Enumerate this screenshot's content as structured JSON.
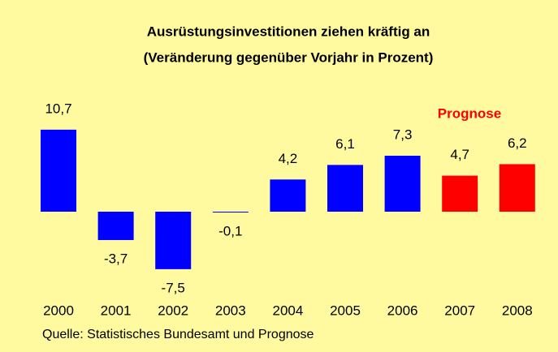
{
  "chart_data": {
    "type": "bar",
    "title": "Ausrüstungsinvestitionen ziehen kräftig an",
    "subtitle": "(Veränderung gegenüber Vorjahr in Prozent)",
    "categories": [
      "2000",
      "2001",
      "2002",
      "2003",
      "2004",
      "2005",
      "2006",
      "2007",
      "2008"
    ],
    "values": [
      10.7,
      -3.7,
      -7.5,
      -0.1,
      4.2,
      6.1,
      7.3,
      4.7,
      6.2
    ],
    "value_labels": [
      "10,7",
      "-3,7",
      "-7,5",
      "-0,1",
      "4,2",
      "6,1",
      "7,3",
      "4,7",
      "6,2"
    ],
    "colors": [
      "#0000ff",
      "#0000ff",
      "#0000ff",
      "#0000ff",
      "#0000ff",
      "#0000ff",
      "#0000ff",
      "#ff0000",
      "#ff0000"
    ],
    "annotation": "Prognose",
    "source": "Quelle: Statistisches Bundesamt und Prognose"
  }
}
